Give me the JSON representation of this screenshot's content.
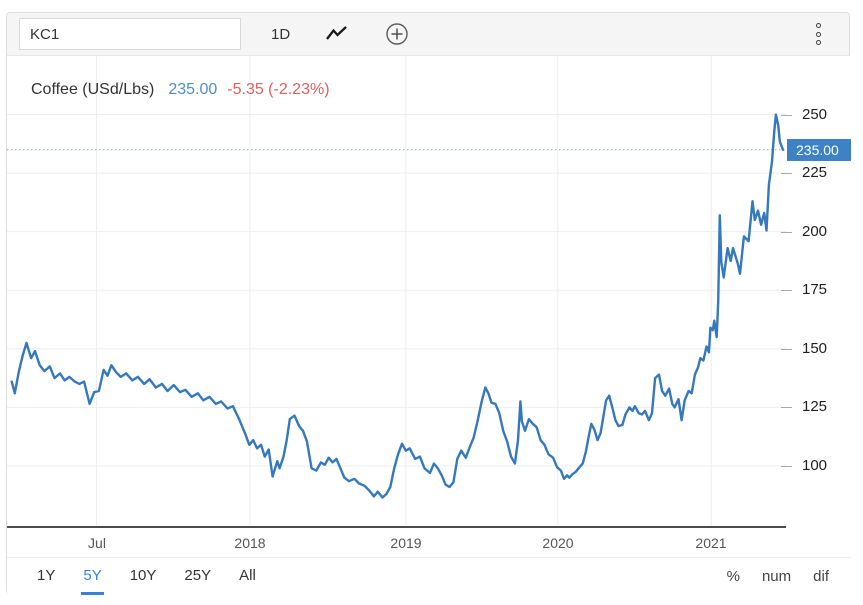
{
  "toolbar": {
    "symbol_value": "KC1",
    "interval_label": "1D",
    "icons": {
      "chart_type": "line-chart-icon",
      "add": "add-circle-icon",
      "menu": "kebab-menu-icon"
    }
  },
  "legend": {
    "name": "Coffee (USd/Lbs)",
    "price": "235.00",
    "change": "-5.35 (-2.23%)"
  },
  "price_axis": {
    "tag_label": "235.00"
  },
  "range_selector": {
    "options": [
      "1Y",
      "5Y",
      "10Y",
      "25Y",
      "All"
    ],
    "active": "5Y",
    "modes": [
      "%",
      "num",
      "dif"
    ]
  },
  "colors": {
    "line": "#3478bd",
    "tag_bg": "#3e82c6",
    "legend_price": "#4e8ccc",
    "change_red": "#e25f5f",
    "active_range": "#3583d6"
  },
  "chart_data": {
    "type": "line",
    "title": "Coffee (USd/Lbs)",
    "current_price": 235.0,
    "change": -5.35,
    "change_pct": "-2.23%",
    "ylim": [
      73.5,
      275
    ],
    "y_ticks": [
      250,
      225,
      200,
      175,
      150,
      125,
      100
    ],
    "price_line": 235,
    "grid": true,
    "legend_position": "top-left",
    "x_ticks": [
      {
        "pos": 0.115,
        "label": "Jul"
      },
      {
        "pos": 0.312,
        "label": "2018"
      },
      {
        "pos": 0.512,
        "label": "2019"
      },
      {
        "pos": 0.707,
        "label": "2020"
      },
      {
        "pos": 0.904,
        "label": "2021"
      }
    ],
    "series": [
      {
        "name": "Coffee",
        "color": "#3478bd",
        "points": [
          [
            0.006,
            136
          ],
          [
            0.01,
            131
          ],
          [
            0.015,
            140
          ],
          [
            0.02,
            147
          ],
          [
            0.025,
            152.5
          ],
          [
            0.031,
            146
          ],
          [
            0.036,
            149
          ],
          [
            0.042,
            143
          ],
          [
            0.048,
            140.5
          ],
          [
            0.055,
            142.5
          ],
          [
            0.061,
            137.5
          ],
          [
            0.068,
            139.5
          ],
          [
            0.074,
            136.5
          ],
          [
            0.08,
            138
          ],
          [
            0.087,
            136
          ],
          [
            0.093,
            135
          ],
          [
            0.099,
            136
          ],
          [
            0.106,
            126.5
          ],
          [
            0.112,
            131.5
          ],
          [
            0.118,
            132
          ],
          [
            0.124,
            141
          ],
          [
            0.129,
            138.5
          ],
          [
            0.134,
            143
          ],
          [
            0.14,
            140
          ],
          [
            0.146,
            138
          ],
          [
            0.153,
            139.5
          ],
          [
            0.161,
            136.5
          ],
          [
            0.168,
            138
          ],
          [
            0.176,
            135
          ],
          [
            0.183,
            137
          ],
          [
            0.191,
            133.5
          ],
          [
            0.199,
            135
          ],
          [
            0.206,
            132
          ],
          [
            0.214,
            134.5
          ],
          [
            0.222,
            131.5
          ],
          [
            0.229,
            132.5
          ],
          [
            0.237,
            129.5
          ],
          [
            0.245,
            131
          ],
          [
            0.252,
            128
          ],
          [
            0.26,
            129.5
          ],
          [
            0.268,
            126.5
          ],
          [
            0.275,
            127.5
          ],
          [
            0.283,
            124.5
          ],
          [
            0.29,
            125.5
          ],
          [
            0.298,
            120
          ],
          [
            0.306,
            113.5
          ],
          [
            0.311,
            109
          ],
          [
            0.316,
            111
          ],
          [
            0.321,
            107.5
          ],
          [
            0.326,
            109
          ],
          [
            0.331,
            104
          ],
          [
            0.336,
            107
          ],
          [
            0.341,
            95.5
          ],
          [
            0.347,
            102
          ],
          [
            0.35,
            99
          ],
          [
            0.355,
            104
          ],
          [
            0.359,
            111
          ],
          [
            0.363,
            120
          ],
          [
            0.369,
            121.5
          ],
          [
            0.375,
            117
          ],
          [
            0.38,
            115
          ],
          [
            0.385,
            110.5
          ],
          [
            0.391,
            99
          ],
          [
            0.397,
            98
          ],
          [
            0.403,
            101.5
          ],
          [
            0.408,
            100.5
          ],
          [
            0.413,
            103.5
          ],
          [
            0.418,
            101.5
          ],
          [
            0.423,
            103
          ],
          [
            0.428,
            99
          ],
          [
            0.433,
            95
          ],
          [
            0.439,
            93.5
          ],
          [
            0.446,
            94.5
          ],
          [
            0.452,
            92.5
          ],
          [
            0.459,
            91.5
          ],
          [
            0.465,
            89.5
          ],
          [
            0.471,
            87
          ],
          [
            0.476,
            89
          ],
          [
            0.482,
            86.5
          ],
          [
            0.487,
            88
          ],
          [
            0.492,
            91
          ],
          [
            0.497,
            99
          ],
          [
            0.502,
            105
          ],
          [
            0.507,
            109.5
          ],
          [
            0.512,
            106.5
          ],
          [
            0.517,
            107.5
          ],
          [
            0.524,
            103
          ],
          [
            0.53,
            104
          ],
          [
            0.536,
            99
          ],
          [
            0.543,
            97
          ],
          [
            0.548,
            101
          ],
          [
            0.553,
            99
          ],
          [
            0.558,
            96
          ],
          [
            0.563,
            92
          ],
          [
            0.568,
            91
          ],
          [
            0.573,
            93
          ],
          [
            0.578,
            103
          ],
          [
            0.583,
            106.5
          ],
          [
            0.589,
            103.5
          ],
          [
            0.594,
            108
          ],
          [
            0.599,
            112
          ],
          [
            0.604,
            119
          ],
          [
            0.609,
            127
          ],
          [
            0.614,
            133.5
          ],
          [
            0.618,
            131
          ],
          [
            0.622,
            127
          ],
          [
            0.627,
            126.5
          ],
          [
            0.632,
            122.5
          ],
          [
            0.637,
            115
          ],
          [
            0.642,
            110.5
          ],
          [
            0.647,
            104
          ],
          [
            0.652,
            101
          ],
          [
            0.656,
            111
          ],
          [
            0.659,
            127.5
          ],
          [
            0.661,
            119
          ],
          [
            0.665,
            115
          ],
          [
            0.67,
            120
          ],
          [
            0.675,
            118
          ],
          [
            0.68,
            116.5
          ],
          [
            0.685,
            111
          ],
          [
            0.69,
            109
          ],
          [
            0.695,
            105
          ],
          [
            0.701,
            103.5
          ],
          [
            0.706,
            99.5
          ],
          [
            0.711,
            98
          ],
          [
            0.715,
            94.5
          ],
          [
            0.719,
            96
          ],
          [
            0.722,
            95
          ],
          [
            0.726,
            96.5
          ],
          [
            0.73,
            97.5
          ],
          [
            0.735,
            99.5
          ],
          [
            0.739,
            101
          ],
          [
            0.743,
            106
          ],
          [
            0.747,
            113
          ],
          [
            0.75,
            118
          ],
          [
            0.754,
            115.5
          ],
          [
            0.758,
            111
          ],
          [
            0.762,
            114
          ],
          [
            0.766,
            122
          ],
          [
            0.769,
            128
          ],
          [
            0.773,
            130
          ],
          [
            0.777,
            125
          ],
          [
            0.781,
            119.5
          ],
          [
            0.785,
            117
          ],
          [
            0.79,
            117.5
          ],
          [
            0.794,
            122
          ],
          [
            0.799,
            125
          ],
          [
            0.803,
            123.5
          ],
          [
            0.806,
            125.5
          ],
          [
            0.811,
            122.5
          ],
          [
            0.815,
            122
          ],
          [
            0.819,
            123.5
          ],
          [
            0.824,
            119.5
          ],
          [
            0.828,
            122.5
          ],
          [
            0.832,
            137.5
          ],
          [
            0.837,
            139
          ],
          [
            0.841,
            132
          ],
          [
            0.845,
            130
          ],
          [
            0.85,
            133
          ],
          [
            0.854,
            126.5
          ],
          [
            0.857,
            125
          ],
          [
            0.862,
            128.5
          ],
          [
            0.866,
            119.5
          ],
          [
            0.87,
            128
          ],
          [
            0.875,
            132
          ],
          [
            0.879,
            131
          ],
          [
            0.883,
            139
          ],
          [
            0.887,
            142
          ],
          [
            0.89,
            146
          ],
          [
            0.894,
            145
          ],
          [
            0.898,
            151
          ],
          [
            0.901,
            148.5
          ],
          [
            0.903,
            159
          ],
          [
            0.906,
            158
          ],
          [
            0.908,
            162
          ],
          [
            0.911,
            155
          ],
          [
            0.913,
            170
          ],
          [
            0.915,
            207
          ],
          [
            0.917,
            187
          ],
          [
            0.92,
            180.5
          ],
          [
            0.925,
            193
          ],
          [
            0.929,
            187.5
          ],
          [
            0.932,
            193
          ],
          [
            0.938,
            186.5
          ],
          [
            0.941,
            182
          ],
          [
            0.946,
            198
          ],
          [
            0.952,
            196
          ],
          [
            0.957,
            213
          ],
          [
            0.96,
            205
          ],
          [
            0.964,
            209
          ],
          [
            0.968,
            203
          ],
          [
            0.972,
            208
          ],
          [
            0.975,
            200.5
          ],
          [
            0.978,
            220
          ],
          [
            0.982,
            230
          ],
          [
            0.985,
            243
          ],
          [
            0.987,
            250
          ],
          [
            0.99,
            245.5
          ],
          [
            0.992,
            238.5
          ],
          [
            0.996,
            235
          ]
        ]
      }
    ]
  }
}
